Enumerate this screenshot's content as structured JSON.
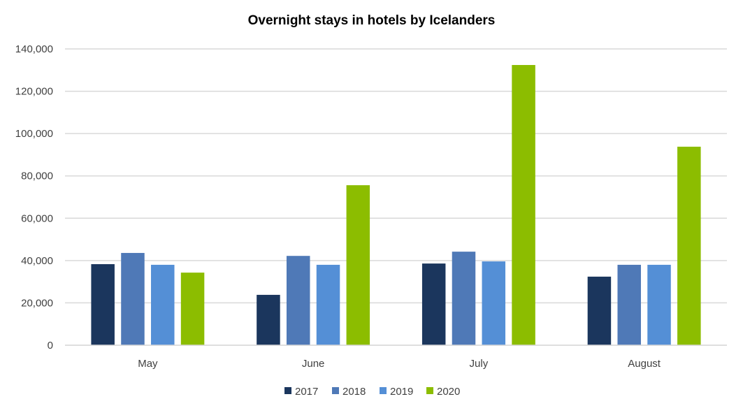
{
  "chart_data": {
    "type": "bar",
    "title": "Overnight stays in hotels by Icelanders",
    "xlabel": "",
    "ylabel": "",
    "categories": [
      "May",
      "June",
      "July",
      "August"
    ],
    "ylim": [
      0,
      140000
    ],
    "yticks": [
      0,
      20000,
      40000,
      60000,
      80000,
      100000,
      120000,
      140000
    ],
    "ytick_labels": [
      "0",
      "20,000",
      "40,000",
      "60,000",
      "80,000",
      "100,000",
      "120,000",
      "140,000"
    ],
    "grid": true,
    "legend_position": "bottom",
    "series": [
      {
        "name": "2017",
        "color": "#1b365d",
        "values": [
          38300,
          23800,
          38600,
          32400
        ]
      },
      {
        "name": "2018",
        "color": "#4f79b7",
        "values": [
          43600,
          42200,
          44200,
          38000
        ]
      },
      {
        "name": "2019",
        "color": "#548fd6",
        "values": [
          38000,
          38000,
          39600,
          38000
        ]
      },
      {
        "name": "2020",
        "color": "#8cbd00",
        "values": [
          34300,
          75600,
          132400,
          93800
        ]
      }
    ]
  }
}
